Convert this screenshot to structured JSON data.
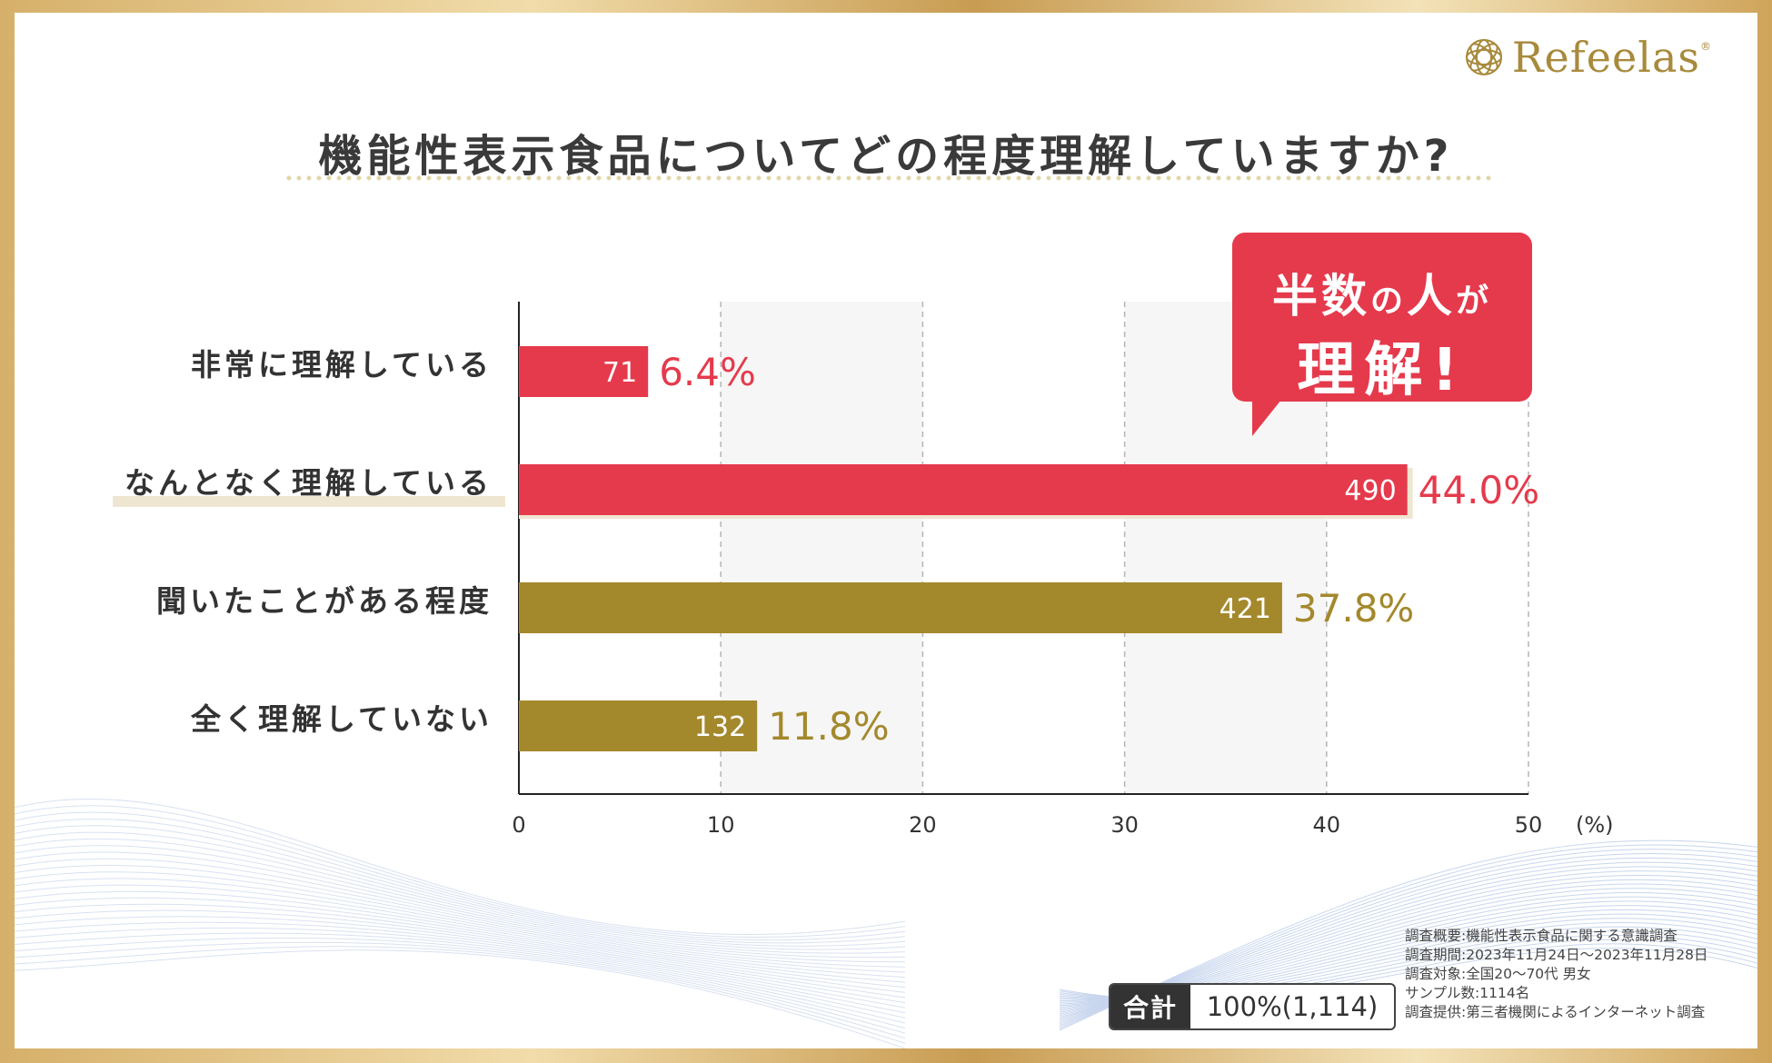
{
  "logo": {
    "text": "Refeelas",
    "mark": "®"
  },
  "title": "機能性表示食品についてどの程度理解していますか?",
  "callout": {
    "line1_a": "半数",
    "line1_b": "の",
    "line1_c": "人",
    "line1_d": "が",
    "line2": "理解!"
  },
  "chart_data": {
    "type": "bar",
    "orientation": "horizontal",
    "title": "機能性表示食品についてどの程度理解していますか?",
    "categories": [
      "非常に理解している",
      "なんとなく理解している",
      "聞いたことがある程度",
      "全く理解していない"
    ],
    "values": [
      6.4,
      44.0,
      37.8,
      11.8
    ],
    "counts": [
      71,
      490,
      421,
      132
    ],
    "value_labels": [
      "6.4%",
      "44.0%",
      "37.8%",
      "11.8%"
    ],
    "count_labels": [
      "71",
      "490",
      "421",
      "132"
    ],
    "bar_colors": [
      "#e53a4c",
      "#e53a4c",
      "#a4882c",
      "#a4882c"
    ],
    "xlim": [
      0,
      50
    ],
    "xticks": [
      0,
      10,
      20,
      30,
      40,
      50
    ],
    "xtick_labels": [
      "0",
      "10",
      "20",
      "30",
      "40",
      "50"
    ],
    "xlabel": "(%)",
    "grid": "vertical dashed"
  },
  "total": {
    "label": "合計",
    "value": "100%(1,114)"
  },
  "notes": [
    "調査概要:機能性表示食品に関する意識調査",
    "調査期間:2023年11月24日〜2023年11月28日",
    "調査対象:全国20〜70代 男女",
    "サンプル数:1114名",
    "調査提供:第三者機関によるインターネット調査"
  ],
  "colors": {
    "red": "#e53a4c",
    "gold": "#a4882c",
    "text": "#333333"
  }
}
